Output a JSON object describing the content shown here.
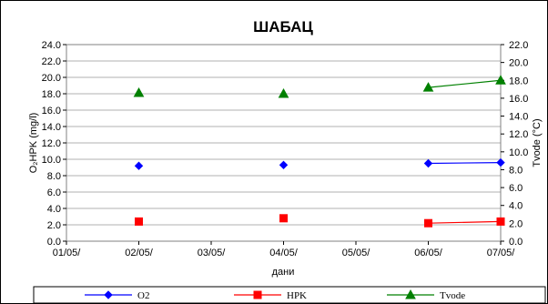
{
  "chart_data": {
    "type": "line",
    "title": "ШАБАЦ",
    "xlabel": "дани",
    "ylabel_left": "O₂HPK (mg/l)",
    "ylabel_right": "Tvode (°C)",
    "x_ticks": [
      "01/05/",
      "02/05/",
      "03/05/",
      "04/05/",
      "05/05/",
      "06/05/",
      "07/05/"
    ],
    "ylim_left": [
      0,
      24
    ],
    "ylim_right": [
      0,
      22
    ],
    "y_left_ticks": [
      "0.0",
      "2.0",
      "4.0",
      "6.0",
      "8.0",
      "10.0",
      "12.0",
      "14.0",
      "16.0",
      "18.0",
      "20.0",
      "22.0",
      "24.0"
    ],
    "y_right_ticks": [
      "0.0",
      "2.0",
      "4.0",
      "6.0",
      "8.0",
      "10.0",
      "12.0",
      "14.0",
      "16.0",
      "18.0",
      "20.0",
      "22.0"
    ],
    "grid": "horizontal",
    "legend_position": "bottom",
    "series": [
      {
        "name": "O2",
        "axis": "left",
        "marker": "diamond",
        "color": "#0000ff",
        "points": [
          {
            "x": "02/05/",
            "y": 9.2
          },
          {
            "x": "04/05/",
            "y": 9.3
          },
          {
            "x": "06/05/",
            "y": 9.5
          },
          {
            "x": "07/05/",
            "y": 9.6
          }
        ],
        "connect_from": 2
      },
      {
        "name": "HPK",
        "axis": "left",
        "marker": "square",
        "color": "#ff0000",
        "points": [
          {
            "x": "02/05/",
            "y": 2.4
          },
          {
            "x": "04/05/",
            "y": 2.8
          },
          {
            "x": "06/05/",
            "y": 2.2
          },
          {
            "x": "07/05/",
            "y": 2.4
          }
        ],
        "connect_from": 2
      },
      {
        "name": "Tvode",
        "axis": "right",
        "marker": "triangle",
        "color": "#008000",
        "points": [
          {
            "x": "02/05/",
            "y": 16.6
          },
          {
            "x": "04/05/",
            "y": 16.5
          },
          {
            "x": "06/05/",
            "y": 17.2
          },
          {
            "x": "07/05/",
            "y": 18.0
          }
        ],
        "connect_from": 2
      }
    ]
  }
}
